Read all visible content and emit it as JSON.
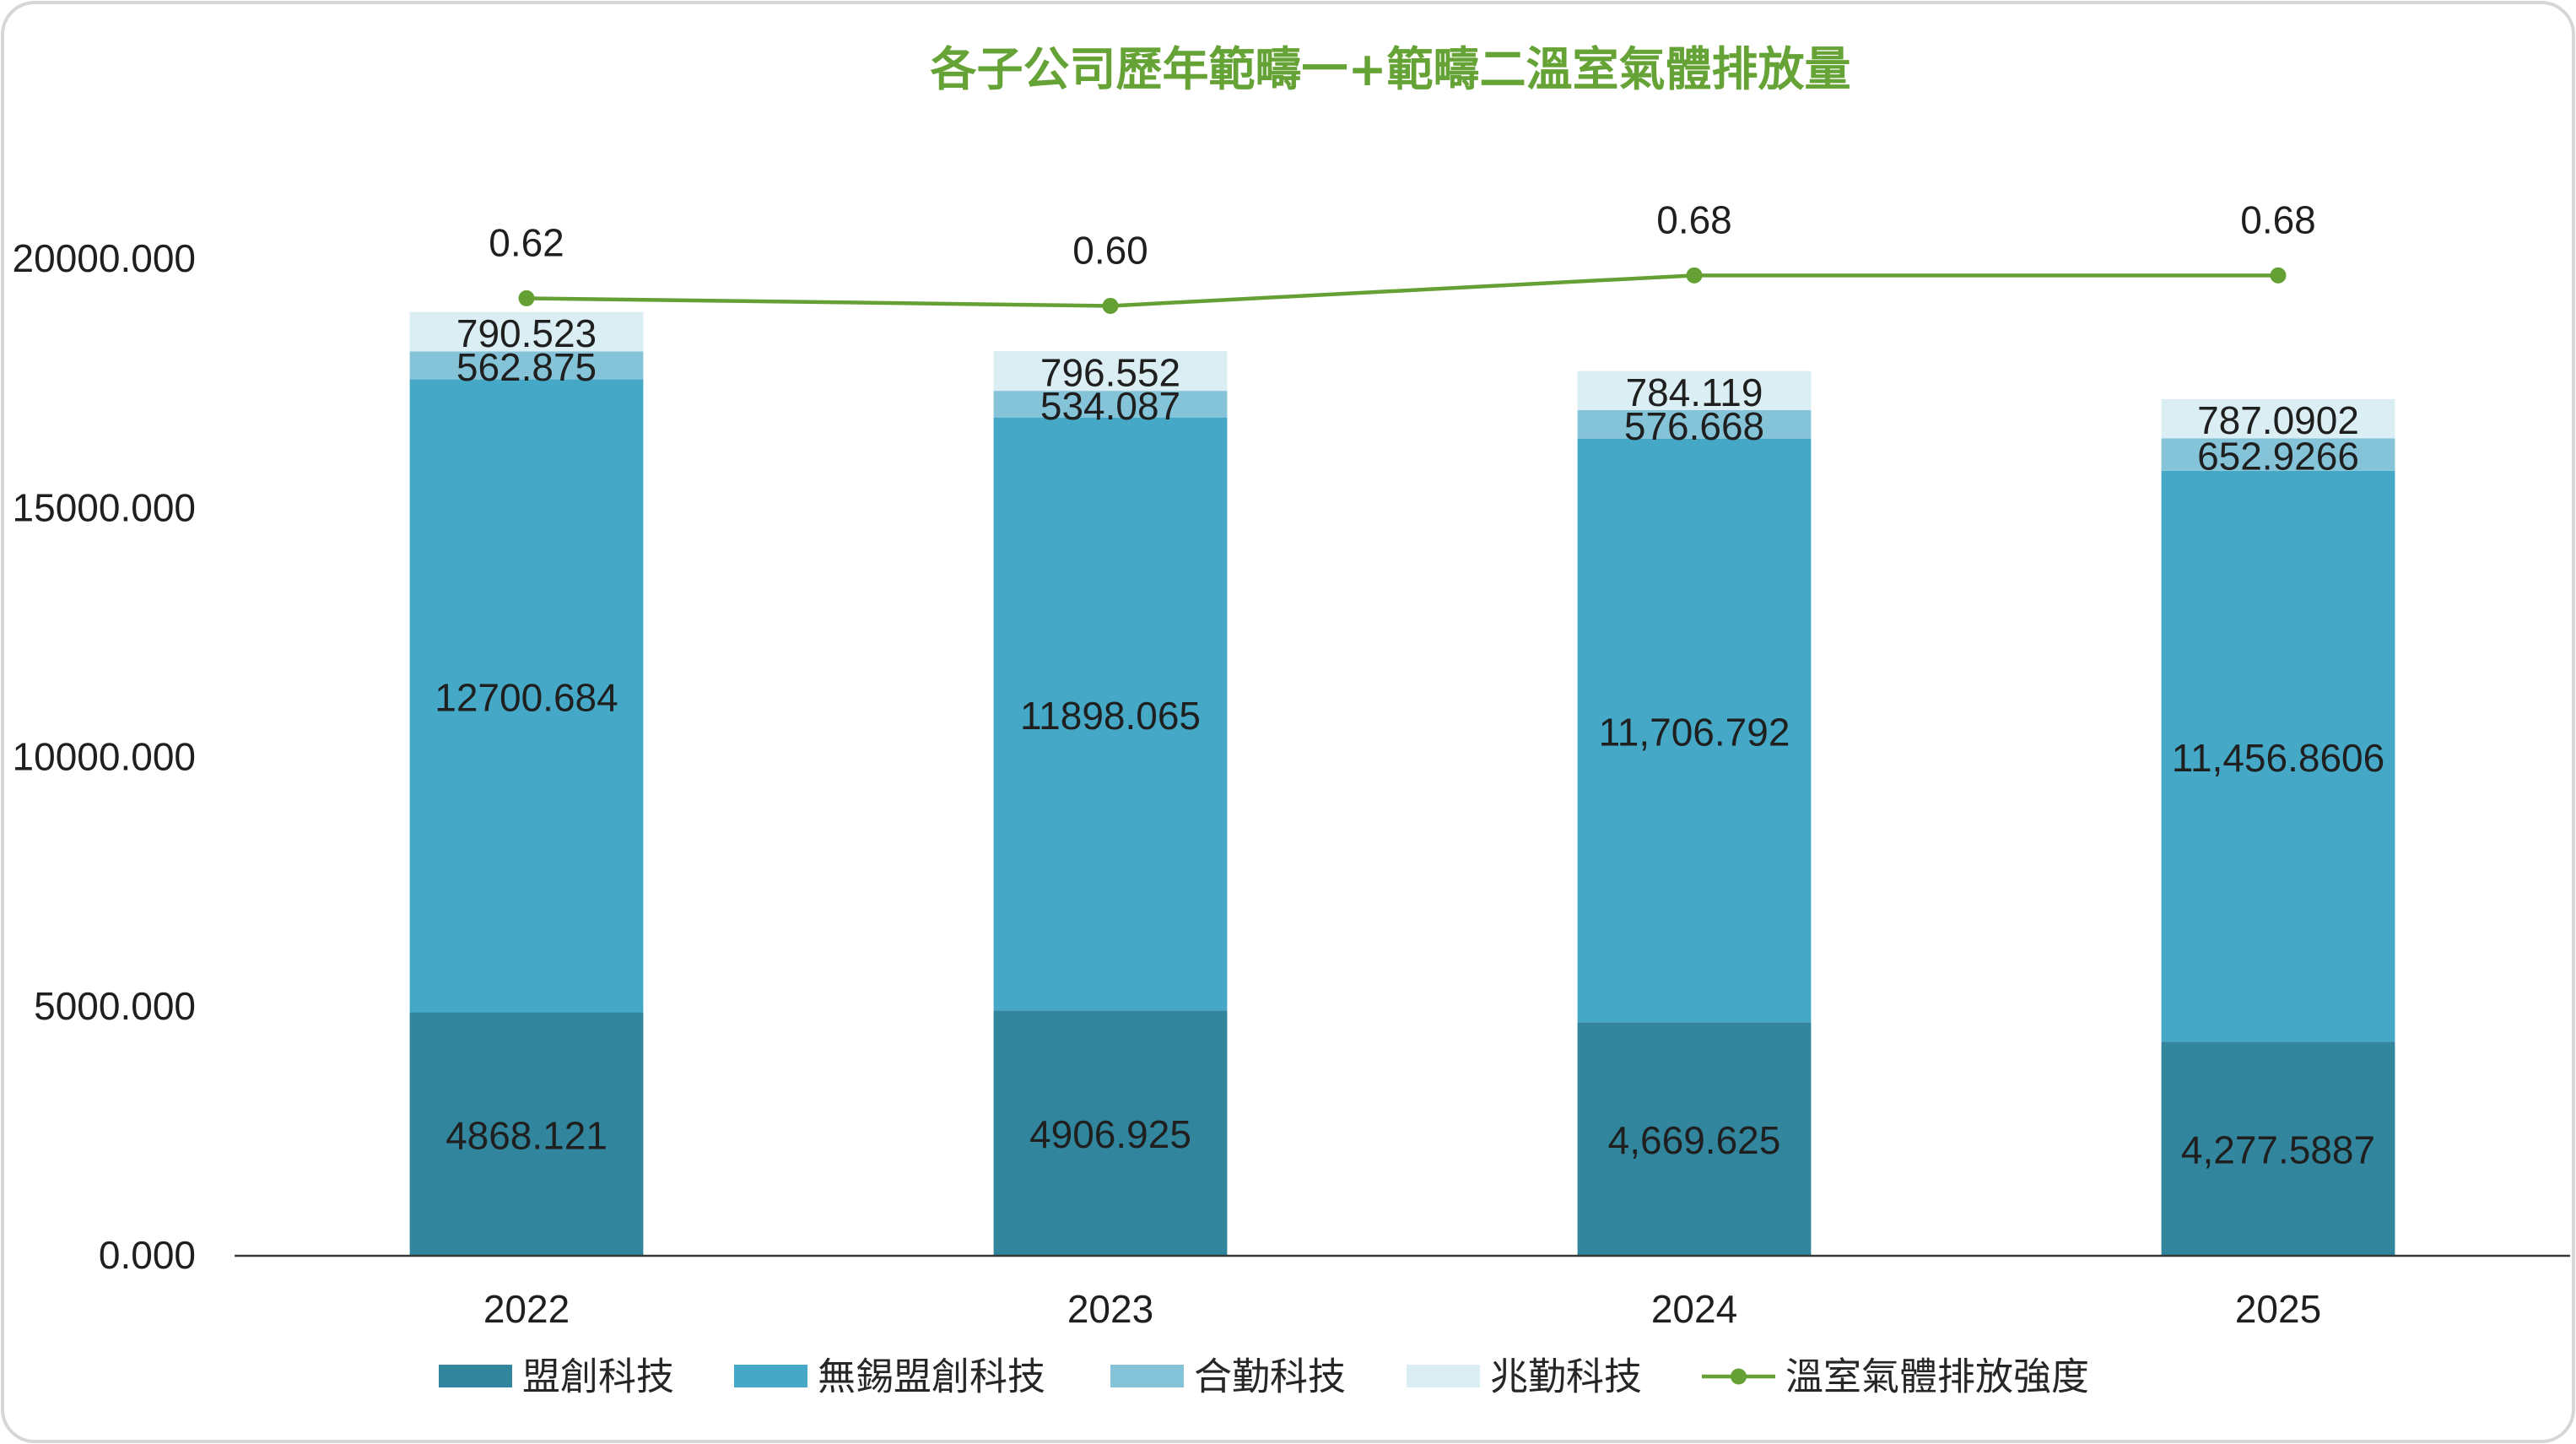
{
  "chart_data": {
    "type": "bar",
    "stacked": true,
    "title": "各子公司歷年範疇一+範疇二溫室氣體排放量",
    "title_color": "#66A336",
    "categories": [
      "2022",
      "2023",
      "2024",
      "2025"
    ],
    "ylim": [
      0,
      20000
    ],
    "yticks": [
      0,
      5000,
      10000,
      15000,
      20000
    ],
    "ytick_labels": [
      "0.000",
      "5000.000",
      "10000.000",
      "15000.000",
      "20000.000"
    ],
    "grid": false,
    "legend_position": "bottom",
    "series": [
      {
        "name": "盟創科技",
        "type": "bar",
        "color": "#31859C",
        "values": [
          4868.121,
          4906.925,
          4669.625,
          4277.5887
        ],
        "labels": [
          "4868.121",
          "4906.925",
          "4,669.625",
          "4,277.5887"
        ]
      },
      {
        "name": "無錫盟創科技",
        "type": "bar",
        "color": "#44A8C6",
        "values": [
          12700.684,
          11898.065,
          11706.792,
          11456.8606
        ],
        "labels": [
          "12700.684",
          "11898.065",
          "11,706.792",
          "11,456.8606"
        ]
      },
      {
        "name": "合勤科技",
        "type": "bar",
        "color": "#84C3D8",
        "values": [
          562.875,
          534.087,
          576.668,
          652.9266
        ],
        "labels": [
          "562.875",
          "534.087",
          "576.668",
          "652.9266"
        ]
      },
      {
        "name": "兆勤科技",
        "type": "bar",
        "color": "#DAEEF3",
        "values": [
          790.523,
          796.552,
          784.119,
          787.0902
        ],
        "labels": [
          "790.523",
          "796.552",
          "784.119",
          "787.0902"
        ]
      },
      {
        "name": "溫室氣體排放強度",
        "type": "line",
        "color": "#65A035",
        "values": [
          0.62,
          0.6,
          0.68,
          0.68
        ],
        "labels": [
          "0.62",
          "0.60",
          "0.68",
          "0.68"
        ]
      }
    ]
  }
}
